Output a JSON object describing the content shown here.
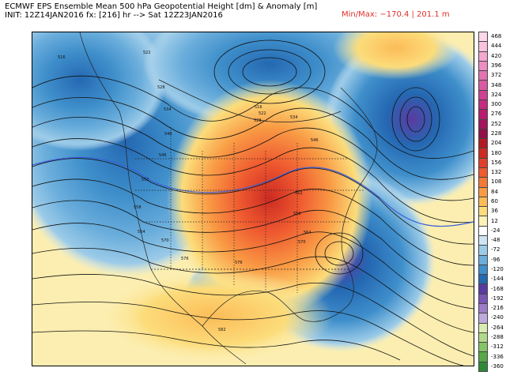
{
  "header": {
    "line1": "ECMWF EPS Ensemble Mean 500 hPa Geopotential Height [dm] & Anomaly [m]",
    "line2": "INIT: 12Z14JAN2016 fx: [216] hr --> Sat 12Z23JAN2016",
    "minmax": "Min/Max: −170.4 | 201.1 m"
  },
  "map": {
    "contour_labels": [
      "516",
      "522",
      "528",
      "534",
      "540",
      "546",
      "552",
      "558",
      "564",
      "570",
      "576",
      "582",
      "516",
      "522",
      "528",
      "534",
      "546",
      "552",
      "558",
      "564",
      "570",
      "576"
    ]
  },
  "colorbar": {
    "levels": [
      {
        "label": "468",
        "color": "#fdd8ea"
      },
      {
        "label": "444",
        "color": "#f9c3df"
      },
      {
        "label": "420",
        "color": "#f3a9d0"
      },
      {
        "label": "396",
        "color": "#ec8ec1"
      },
      {
        "label": "372",
        "color": "#e374b1"
      },
      {
        "label": "348",
        "color": "#d95aa2"
      },
      {
        "label": "324",
        "color": "#cf4192"
      },
      {
        "label": "300",
        "color": "#c42c81"
      },
      {
        "label": "276",
        "color": "#b81c6e"
      },
      {
        "label": "252",
        "color": "#a5155c"
      },
      {
        "label": "228",
        "color": "#911049"
      },
      {
        "label": "204",
        "color": "#b01a24"
      },
      {
        "label": "180",
        "color": "#cc2a22"
      },
      {
        "label": "156",
        "color": "#e0402a"
      },
      {
        "label": "132",
        "color": "#ef5a30"
      },
      {
        "label": "108",
        "color": "#f57a38"
      },
      {
        "label": "84",
        "color": "#f99b45"
      },
      {
        "label": "60",
        "color": "#fbbc58"
      },
      {
        "label": "36",
        "color": "#fcdc7a"
      },
      {
        "label": "12",
        "color": "#fdf1b8"
      },
      {
        "label": "-24",
        "color": "#ffffff"
      },
      {
        "label": "-48",
        "color": "#cfe5f3"
      },
      {
        "label": "-72",
        "color": "#9ccbe8"
      },
      {
        "label": "-96",
        "color": "#6baedc"
      },
      {
        "label": "-120",
        "color": "#3f8fcb"
      },
      {
        "label": "-144",
        "color": "#2468b2"
      },
      {
        "label": "-168",
        "color": "#5a3aa0"
      },
      {
        "label": "-192",
        "color": "#7a56b4"
      },
      {
        "label": "-216",
        "color": "#9c7ec8"
      },
      {
        "label": "-240",
        "color": "#c0aadc"
      },
      {
        "label": "-264",
        "color": "#d8ecb0"
      },
      {
        "label": "-288",
        "color": "#b0da8a"
      },
      {
        "label": "-312",
        "color": "#84c466"
      },
      {
        "label": "-336",
        "color": "#56a848"
      },
      {
        "label": "-360",
        "color": "#2e8a38"
      }
    ]
  }
}
